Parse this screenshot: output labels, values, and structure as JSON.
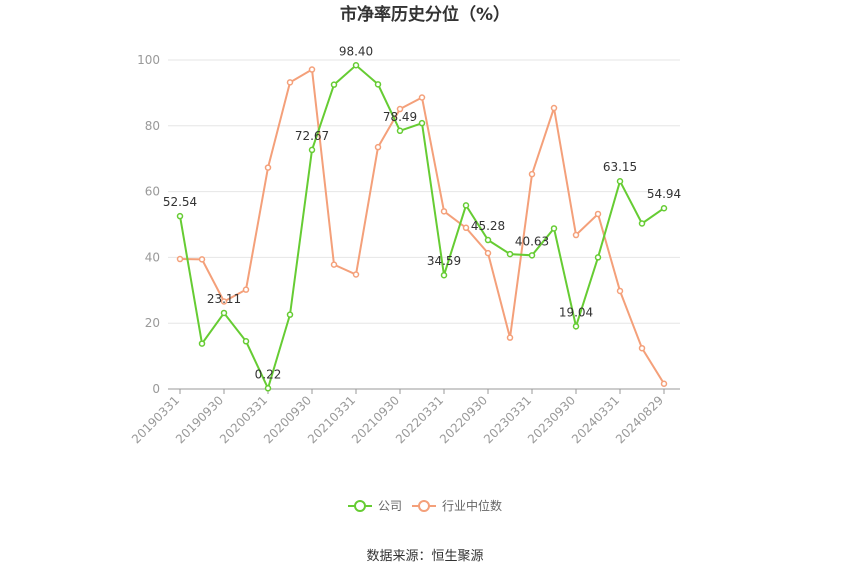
{
  "chart_data": {
    "type": "line",
    "title": "市净率历史分位（%）",
    "source": "数据来源：恒生聚源",
    "ylim": [
      0,
      100
    ],
    "yticks": [
      0,
      20,
      40,
      60,
      80,
      100
    ],
    "x": [
      "20190331",
      "20190630",
      "20190930",
      "20191231",
      "20200331",
      "20200630",
      "20200930",
      "20201231",
      "20210331",
      "20210630",
      "20210930",
      "20211231",
      "20220331",
      "20220630",
      "20220930",
      "20221231",
      "20230331",
      "20230630",
      "20230930",
      "20231231",
      "20240331",
      "20240630",
      "20240829"
    ],
    "xticks": [
      "20190331",
      "20190930",
      "20200331",
      "20200930",
      "20210331",
      "20210930",
      "20220331",
      "20220930",
      "20230331",
      "20230930",
      "20240331",
      "20240829"
    ],
    "grid": true,
    "legend_position": "bottom",
    "series": [
      {
        "name": "公司",
        "color": "#66cc33",
        "values": [
          52.54,
          13.8,
          23.11,
          14.5,
          0.22,
          22.6,
          72.67,
          92.5,
          98.4,
          92.6,
          78.49,
          80.8,
          34.59,
          55.8,
          45.28,
          41.0,
          40.63,
          48.8,
          19.04,
          40.0,
          63.15,
          50.3,
          54.94
        ],
        "labels": {
          "0": "52.54",
          "2": "23.11",
          "4": "0.22",
          "6": "72.67",
          "8": "98.40",
          "10": "78.49",
          "12": "34.59",
          "14": "45.28",
          "16": "40.63",
          "18": "19.04",
          "20": "63.15",
          "22": "54.94"
        }
      },
      {
        "name": "行业中位数",
        "color": "#f4a07a",
        "values": [
          39.5,
          39.4,
          26.6,
          30.2,
          67.3,
          93.2,
          97.1,
          37.8,
          34.8,
          73.5,
          85.1,
          88.6,
          54.0,
          49.0,
          41.3,
          15.6,
          65.3,
          85.4,
          46.8,
          53.2,
          29.8,
          12.4,
          1.6
        ]
      }
    ]
  }
}
